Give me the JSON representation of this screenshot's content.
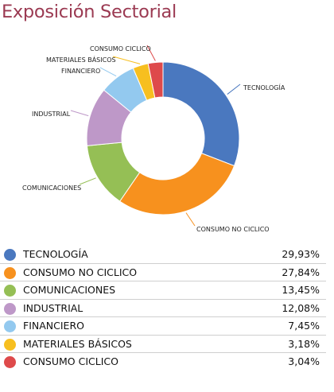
{
  "page": {
    "title": "Exposición Sectorial"
  },
  "chart_data": {
    "type": "pie",
    "donut": true,
    "categories": [
      "TECNOLOGÍA",
      "CONSUMO NO CICLICO",
      "COMUNICACIONES",
      "INDUSTRIAL",
      "FINANCIERO",
      "MATERIALES BÁSICOS",
      "CONSUMO CICLICO"
    ],
    "values": [
      29.93,
      27.84,
      13.45,
      12.08,
      7.45,
      3.18,
      3.04
    ],
    "value_labels": [
      "29,93%",
      "27,84%",
      "13,45%",
      "12,08%",
      "7,45%",
      "3,18%",
      "3,04%"
    ],
    "colors": [
      "#4a78bf",
      "#f7911e",
      "#95bf55",
      "#be98c8",
      "#93c9ef",
      "#f7bf1f",
      "#de4a4b"
    ],
    "legend": "bottom"
  }
}
